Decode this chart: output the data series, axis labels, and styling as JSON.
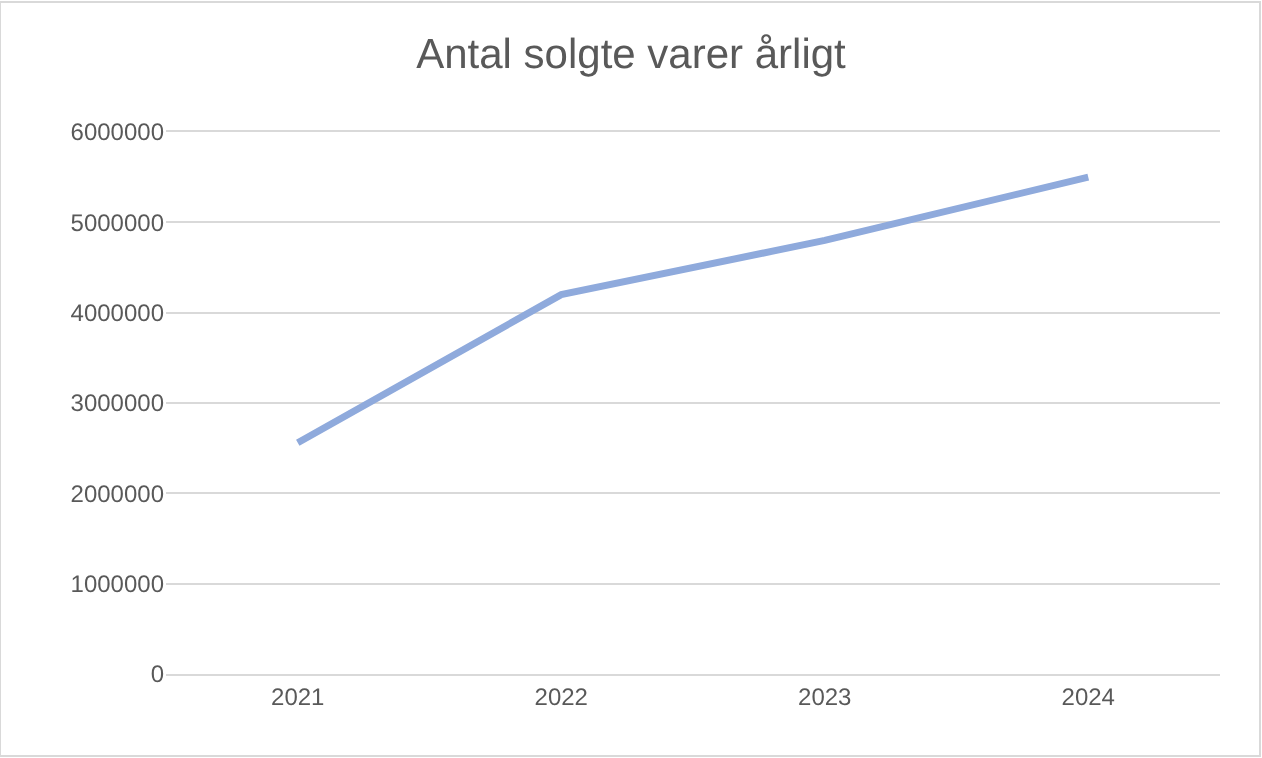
{
  "chart_data": {
    "type": "line",
    "title": "Antal solgte varer årligt",
    "categories": [
      "2021",
      "2022",
      "2023",
      "2024"
    ],
    "series": [
      {
        "color": "#8faadc",
        "values": [
          2560000,
          4200000,
          4800000,
          5500000
        ]
      }
    ],
    "ylim": [
      0,
      6000000
    ],
    "yticks": [
      0,
      1000000,
      2000000,
      3000000,
      4000000,
      5000000,
      6000000
    ],
    "grid": "y",
    "marker": "none",
    "line_style": "solid"
  }
}
